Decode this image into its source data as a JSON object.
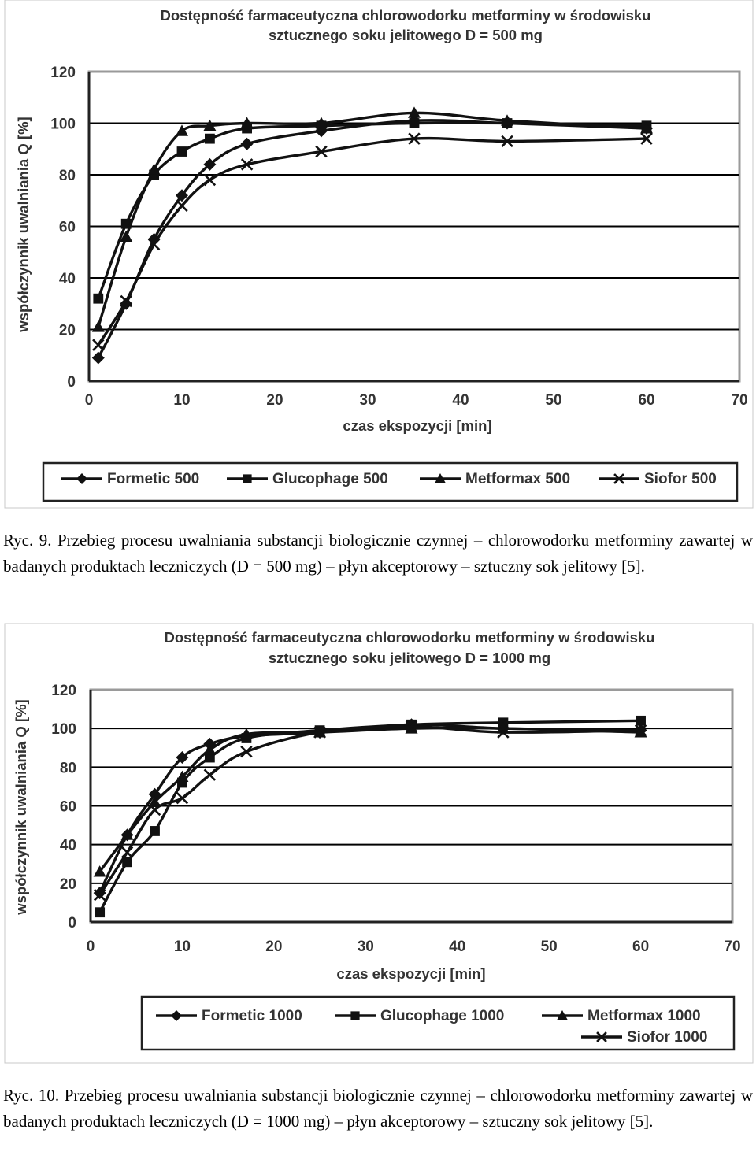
{
  "colors": {
    "series": "#111111",
    "grid": "#000000",
    "plot_border": "#9a9a9a",
    "frame_border": "#c8c8c8",
    "text": "#333333"
  },
  "chart_data": [
    {
      "type": "line",
      "title": "Dostępność farmaceutyczna chlorowodorku metforminy w środowisku",
      "subtitle": "sztucznego soku jelitowego D = 500 mg",
      "xlabel": "czas ekspozycji [min]",
      "ylabel": "współczynnik uwalniania Q [%]",
      "xlim": [
        0,
        70
      ],
      "ylim": [
        0,
        120
      ],
      "xticks": [
        0,
        10,
        20,
        30,
        40,
        50,
        60,
        70
      ],
      "yticks": [
        0,
        20,
        40,
        60,
        80,
        100,
        120
      ],
      "grid": "horizontal",
      "legend_position": "bottom",
      "series": [
        {
          "name": "Formetic 500",
          "marker": "diamond",
          "x": [
            1,
            4,
            7,
            10,
            13,
            17,
            25,
            35,
            45,
            60
          ],
          "y": [
            9,
            30,
            55,
            72,
            84,
            92,
            97,
            101,
            100,
            98
          ]
        },
        {
          "name": "Glucophage 500",
          "marker": "square",
          "x": [
            1,
            4,
            7,
            10,
            13,
            17,
            25,
            35,
            45,
            60
          ],
          "y": [
            32,
            61,
            80,
            89,
            94,
            98,
            99,
            100,
            100,
            99
          ]
        },
        {
          "name": "Metformax 500",
          "marker": "triangle",
          "x": [
            1,
            4,
            7,
            10,
            13,
            17,
            25,
            35,
            45,
            60
          ],
          "y": [
            21,
            56,
            82,
            97,
            99,
            100,
            100,
            104,
            101,
            98
          ]
        },
        {
          "name": "Siofor 500",
          "marker": "x",
          "x": [
            1,
            4,
            7,
            10,
            13,
            17,
            25,
            35,
            45,
            60
          ],
          "y": [
            14,
            31,
            53,
            68,
            78,
            84,
            89,
            94,
            93,
            94
          ]
        }
      ]
    },
    {
      "type": "line",
      "title": "Dostępność farmaceutyczna chlorowodorku metforminy w środowisku",
      "subtitle": "sztucznego soku jelitowego D = 1000 mg",
      "xlabel": "czas ekspozycji [min]",
      "ylabel": "współczynnik uwalniania Q [%]",
      "xlim": [
        0,
        70
      ],
      "ylim": [
        0,
        120
      ],
      "xticks": [
        0,
        10,
        20,
        30,
        40,
        50,
        60,
        70
      ],
      "yticks": [
        0,
        20,
        40,
        60,
        80,
        100,
        120
      ],
      "grid": "horizontal",
      "legend_position": "bottom",
      "series": [
        {
          "name": "Formetic 1000",
          "marker": "diamond",
          "x": [
            1,
            4,
            7,
            10,
            13,
            17,
            25,
            35,
            45,
            60
          ],
          "y": [
            15,
            45,
            66,
            85,
            92,
            96,
            98,
            102,
            100,
            99
          ]
        },
        {
          "name": "Glucophage 1000",
          "marker": "square",
          "x": [
            1,
            4,
            7,
            10,
            13,
            17,
            25,
            35,
            45,
            60
          ],
          "y": [
            5,
            31,
            47,
            72,
            85,
            95,
            99,
            102,
            103,
            104
          ]
        },
        {
          "name": "Metformax 1000",
          "marker": "triangle",
          "x": [
            1,
            4,
            7,
            10,
            13,
            17,
            25,
            35,
            45,
            60
          ],
          "y": [
            26,
            45,
            62,
            75,
            89,
            97,
            98,
            100,
            100,
            98
          ]
        },
        {
          "name": "Siofor 1000",
          "marker": "x",
          "x": [
            1,
            4,
            7,
            10,
            13,
            17,
            25,
            35,
            45,
            60
          ],
          "y": [
            14,
            36,
            58,
            64,
            76,
            88,
            98,
            101,
            98,
            99
          ]
        }
      ]
    }
  ],
  "captions": [
    "Ryc. 9. Przebieg procesu uwalniania substancji biologicznie czynnej – chlorowodorku metforminy zawartej w badanych produktach leczniczych (D = 500 mg) – płyn akceptorowy – sztuczny sok jelitowy [5].",
    "Ryc. 10. Przebieg procesu uwalniania substancji biologicznie czynnej – chlorowodorku metforminy zawartej w badanych produktach leczniczych (D = 1000 mg) – płyn akceptorowy – sztuczny sok jelitowy [5]."
  ]
}
